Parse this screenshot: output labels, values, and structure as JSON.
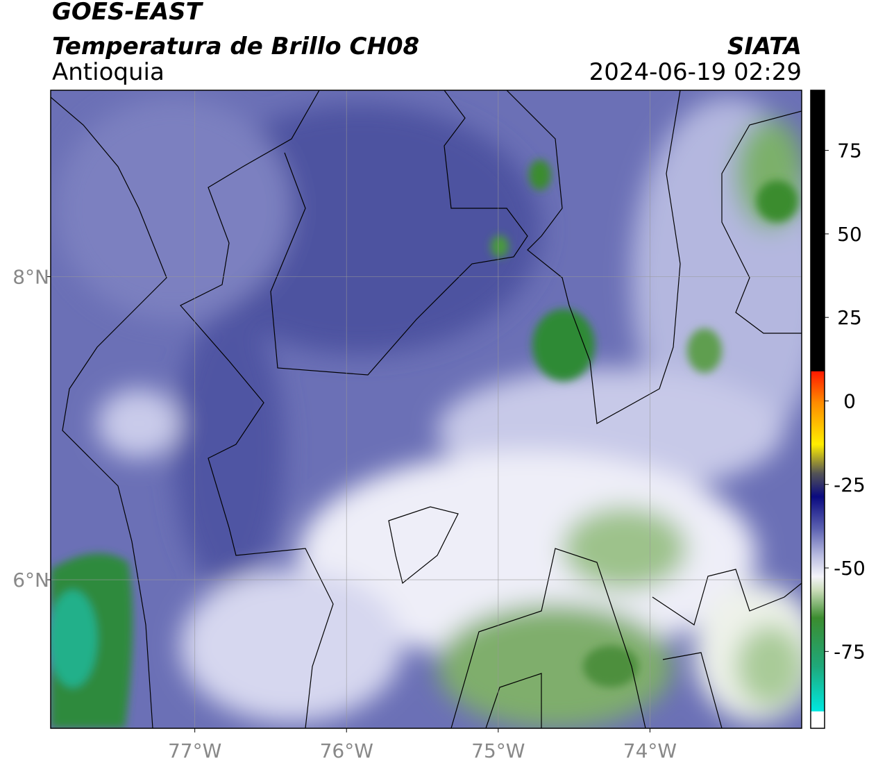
{
  "chart_data": {
    "type": "map",
    "title": "GOES-EAST",
    "subtitle": "Temperatura de Brillo CH08",
    "region": "Antioquia",
    "source": "SIATA",
    "timestamp": "2024-06-19 02:29",
    "xlim": [
      -77.95,
      -73.0
    ],
    "ylim": [
      5.02,
      9.23
    ],
    "xticks": [
      {
        "value": -77,
        "label": "77°W"
      },
      {
        "value": -76,
        "label": "76°W"
      },
      {
        "value": -75,
        "label": "75°W"
      },
      {
        "value": -74,
        "label": "74°W"
      }
    ],
    "yticks": [
      {
        "value": 8,
        "label": "8°N"
      },
      {
        "value": 6,
        "label": "6°N"
      }
    ],
    "grid": true,
    "clim": [
      -98,
      93
    ],
    "cticks": [
      75,
      50,
      25,
      0,
      -25,
      -50,
      -75
    ]
  }
}
